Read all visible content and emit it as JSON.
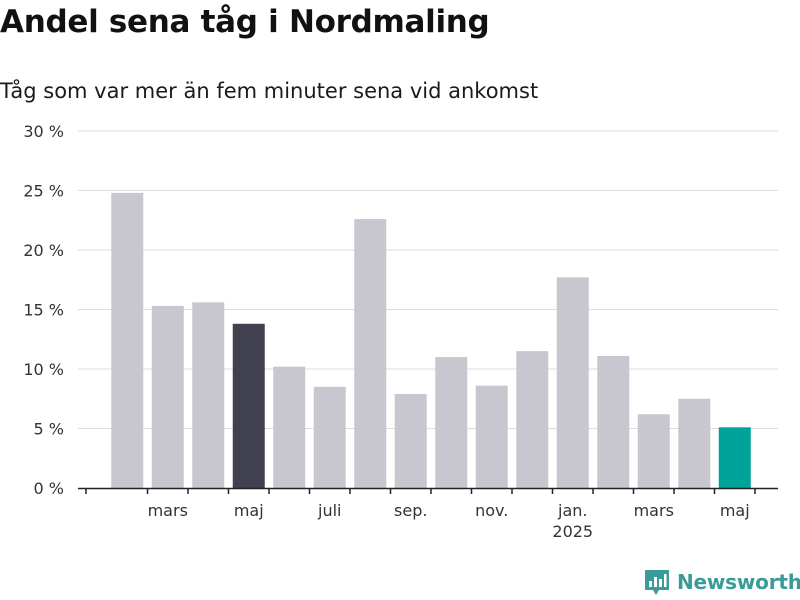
{
  "chart_data": {
    "type": "bar",
    "title": "Andel sena tåg i Nordmaling",
    "subtitle": "Tåg som var mer än fem minuter sena vid ankomst",
    "xlabel": "",
    "ylabel": "",
    "categories": [
      "2024-02",
      "2024-03",
      "2024-04",
      "2024-05",
      "2024-06",
      "2024-07",
      "2024-08",
      "2024-09",
      "2024-10",
      "2024-11",
      "2024-12",
      "2025-01",
      "2025-02",
      "2025-03",
      "2025-04",
      "2025-05"
    ],
    "values": [
      24.8,
      15.3,
      15.6,
      13.8,
      10.2,
      8.5,
      22.6,
      7.9,
      11.0,
      8.6,
      11.5,
      17.7,
      11.1,
      6.2,
      7.5,
      5.1
    ],
    "highlight": {
      "2024-05": "#40404e",
      "2025-05": "#00a39a"
    },
    "default_color": "#c8c7cf",
    "ylim": [
      0,
      30
    ],
    "yticks": [
      "0 %",
      "5 %",
      "10 %",
      "15 %",
      "20 %",
      "25 %",
      "30 %"
    ],
    "xtick_labels": [
      {
        "month": "2024-03",
        "label": "mars",
        "sub": ""
      },
      {
        "month": "2024-05",
        "label": "maj",
        "sub": ""
      },
      {
        "month": "2024-07",
        "label": "juli",
        "sub": ""
      },
      {
        "month": "2024-09",
        "label": "sep.",
        "sub": ""
      },
      {
        "month": "2024-11",
        "label": "nov.",
        "sub": ""
      },
      {
        "month": "2025-01",
        "label": "jan.",
        "sub": "2025"
      },
      {
        "month": "2025-03",
        "label": "mars",
        "sub": ""
      },
      {
        "month": "2025-05",
        "label": "maj",
        "sub": ""
      }
    ],
    "grid": true
  },
  "logo": {
    "text": "Newsworthy"
  }
}
